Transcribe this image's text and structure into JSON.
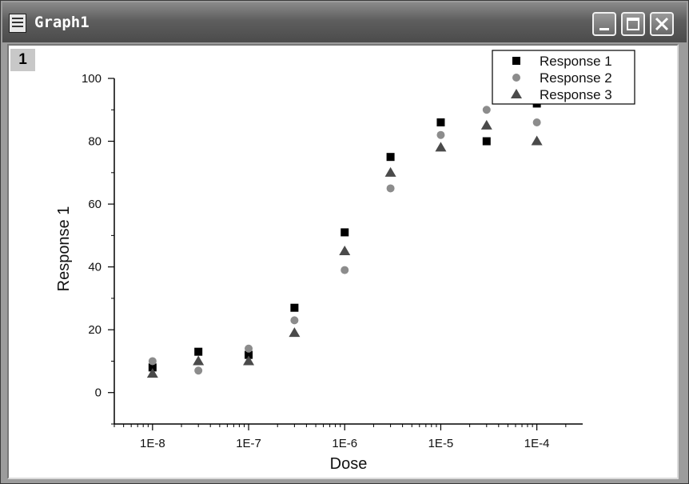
{
  "window": {
    "title": "Graph1",
    "layer_label": "1"
  },
  "chart_data": {
    "type": "scatter",
    "xlabel": "Dose",
    "ylabel": "Response 1",
    "x_scale": "log",
    "xlim": [
      4e-09,
      0.0003
    ],
    "ylim": [
      -10,
      100
    ],
    "x_ticks": [
      1e-08,
      1e-07,
      1e-06,
      1e-05,
      0.0001
    ],
    "x_tick_labels": [
      "1E-8",
      "1E-7",
      "1E-6",
      "1E-5",
      "1E-4"
    ],
    "y_ticks": [
      0,
      20,
      40,
      60,
      80,
      100
    ],
    "y_tick_labels": [
      "0",
      "20",
      "40",
      "60",
      "80",
      "100"
    ],
    "grid": false,
    "legend": "top-right",
    "x": [
      1e-08,
      3e-08,
      1e-07,
      3e-07,
      1e-06,
      3e-06,
      1e-05,
      3e-05,
      0.0001
    ],
    "series": [
      {
        "name": "Response 1",
        "marker": "square",
        "color": "#000000",
        "values": [
          8,
          13,
          12,
          27,
          51,
          75,
          86,
          80,
          92
        ]
      },
      {
        "name": "Response 2",
        "marker": "circle",
        "color": "#8c8c8c",
        "values": [
          10,
          7,
          14,
          23,
          39,
          65,
          82,
          90,
          86
        ]
      },
      {
        "name": "Response 3",
        "marker": "triangle",
        "color": "#4a4a4a",
        "values": [
          6,
          10,
          10,
          19,
          45,
          70,
          78,
          85,
          80
        ]
      }
    ]
  }
}
